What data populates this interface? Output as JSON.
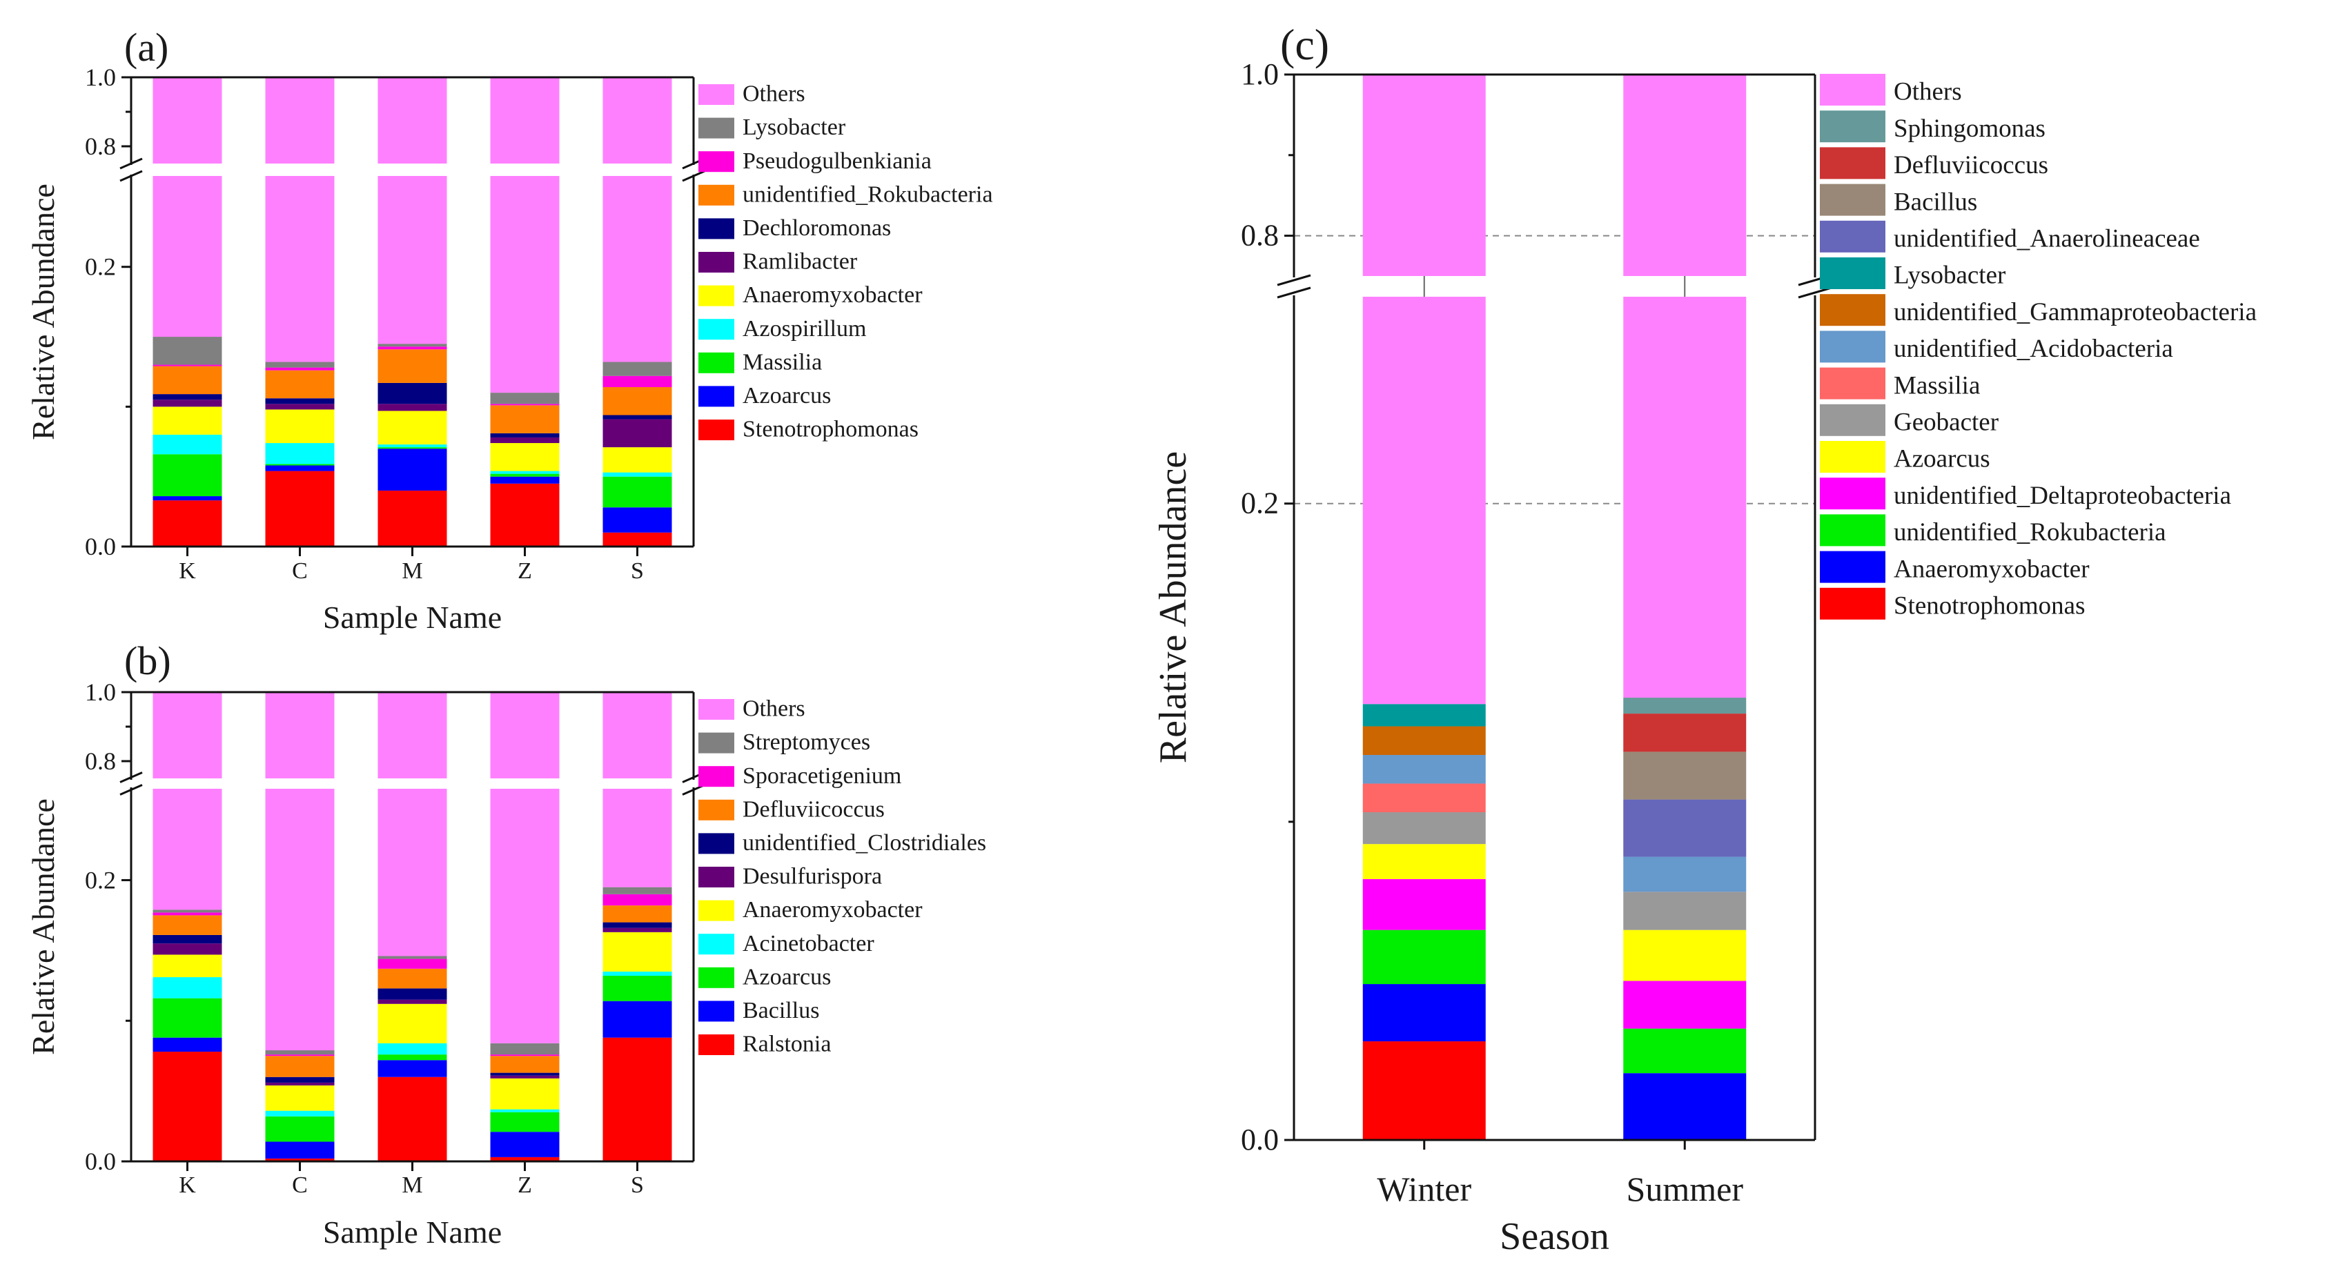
{
  "chart_data": [
    {
      "panel_label": "(a)",
      "type": "bar",
      "stacked": true,
      "axis_break": [
        0.265,
        0.75
      ],
      "xlabel": "Sample Name",
      "ylabel": "Relative Abundance",
      "categories": [
        "K",
        "C",
        "M",
        "Z",
        "S"
      ],
      "yticks": [
        "0.0",
        "0.2",
        "0.8",
        "1.0"
      ],
      "series": [
        {
          "name": "Stenotrophomonas",
          "color": "#ff0000",
          "values": [
            0.033,
            0.054,
            0.04,
            0.045,
            0.01
          ]
        },
        {
          "name": "Azoarcus",
          "color": "#0000ff",
          "values": [
            0.003,
            0.004,
            0.03,
            0.005,
            0.018
          ]
        },
        {
          "name": "Massilia",
          "color": "#00ee00",
          "values": [
            0.03,
            0.001,
            0.001,
            0.002,
            0.022
          ]
        },
        {
          "name": "Azospirillum",
          "color": "#00ffff",
          "values": [
            0.014,
            0.015,
            0.002,
            0.002,
            0.003
          ]
        },
        {
          "name": "Anaeromyxobacter",
          "color": "#ffff00",
          "values": [
            0.02,
            0.024,
            0.024,
            0.02,
            0.018
          ]
        },
        {
          "name": "Ramlibacter",
          "color": "#660077",
          "values": [
            0.005,
            0.004,
            0.005,
            0.004,
            0.02
          ]
        },
        {
          "name": "Dechloromonas",
          "color": "#000080",
          "values": [
            0.004,
            0.004,
            0.015,
            0.003,
            0.003
          ]
        },
        {
          "name": "unidentified_Rokubacteria",
          "color": "#ff7f00",
          "values": [
            0.02,
            0.02,
            0.024,
            0.02,
            0.02
          ]
        },
        {
          "name": "Pseudogulbenkiania",
          "color": "#ff00dd",
          "values": [
            0.001,
            0.002,
            0.002,
            0.001,
            0.008
          ]
        },
        {
          "name": "Lysobacter",
          "color": "#808080",
          "values": [
            0.02,
            0.004,
            0.002,
            0.008,
            0.01
          ]
        },
        {
          "name": "Others",
          "color": "#ff80ff",
          "values": [
            0.85,
            0.868,
            0.855,
            0.89,
            0.868
          ]
        }
      ]
    },
    {
      "panel_label": "(b)",
      "type": "bar",
      "stacked": true,
      "axis_break": [
        0.265,
        0.75
      ],
      "xlabel": "Sample Name",
      "ylabel": "Relative Abundance",
      "categories": [
        "K",
        "C",
        "M",
        "Z",
        "S"
      ],
      "yticks": [
        "0.0",
        "0.2",
        "0.8",
        "1.0"
      ],
      "series": [
        {
          "name": "Ralstonia",
          "color": "#ff0000",
          "values": [
            0.078,
            0.002,
            0.06,
            0.003,
            0.088
          ]
        },
        {
          "name": "Bacillus",
          "color": "#0000ff",
          "values": [
            0.01,
            0.012,
            0.012,
            0.018,
            0.026
          ]
        },
        {
          "name": "Azoarcus",
          "color": "#00ee00",
          "values": [
            0.028,
            0.018,
            0.004,
            0.014,
            0.018
          ]
        },
        {
          "name": "Acinetobacter",
          "color": "#00ffff",
          "values": [
            0.015,
            0.004,
            0.008,
            0.002,
            0.003
          ]
        },
        {
          "name": "Anaeromyxobacter",
          "color": "#ffff00",
          "values": [
            0.016,
            0.018,
            0.028,
            0.022,
            0.028
          ]
        },
        {
          "name": "Desulfurispora",
          "color": "#660077",
          "values": [
            0.008,
            0.002,
            0.003,
            0.002,
            0.003
          ]
        },
        {
          "name": "unidentified_Clostridiales",
          "color": "#000080",
          "values": [
            0.006,
            0.004,
            0.008,
            0.002,
            0.004
          ]
        },
        {
          "name": "Defluviicoccus",
          "color": "#ff7f00",
          "values": [
            0.014,
            0.015,
            0.014,
            0.012,
            0.012
          ]
        },
        {
          "name": "Sporacetigenium",
          "color": "#ff00dd",
          "values": [
            0.002,
            0.001,
            0.007,
            0.001,
            0.008
          ]
        },
        {
          "name": "Streptomyces",
          "color": "#808080",
          "values": [
            0.002,
            0.003,
            0.002,
            0.008,
            0.005
          ]
        },
        {
          "name": "Others",
          "color": "#ff80ff",
          "values": [
            0.821,
            0.921,
            0.854,
            0.916,
            0.805
          ]
        }
      ]
    },
    {
      "panel_label": "(c)",
      "type": "bar",
      "stacked": true,
      "axis_break": [
        0.265,
        0.75
      ],
      "xlabel": "Season",
      "ylabel": "Relative Abundance",
      "categories": [
        "Winter",
        "Summer"
      ],
      "yticks": [
        "0.0",
        "0.2",
        "0.8",
        "1.0"
      ],
      "series": [
        {
          "name": "Stenotrophomonas",
          "color": "#ff0000",
          "values": [
            0.031,
            0.0
          ]
        },
        {
          "name": "Anaeromyxobacter",
          "color": "#0000ff",
          "values": [
            0.018,
            0.021
          ]
        },
        {
          "name": "unidentified_Rokubacteria",
          "color": "#00ee00",
          "values": [
            0.017,
            0.014
          ]
        },
        {
          "name": "unidentified_Deltaproteobacteria",
          "color": "#ff00ff",
          "values": [
            0.016,
            0.015
          ]
        },
        {
          "name": "Azoarcus",
          "color": "#ffff00",
          "values": [
            0.011,
            0.016
          ]
        },
        {
          "name": "Geobacter",
          "color": "#999999",
          "values": [
            0.01,
            0.012
          ]
        },
        {
          "name": "Massilia",
          "color": "#ff6666",
          "values": [
            0.009,
            0.0
          ]
        },
        {
          "name": "unidentified_Acidobacteria",
          "color": "#6699cc",
          "values": [
            0.009,
            0.011
          ]
        },
        {
          "name": "unidentified_Gammaproteobacteria",
          "color": "#cc6600",
          "values": [
            0.009,
            0.0
          ]
        },
        {
          "name": "Lysobacter",
          "color": "#009999",
          "values": [
            0.007,
            0.0
          ]
        },
        {
          "name": "unidentified_Anaerolineaceae",
          "color": "#6666bb",
          "values": [
            0.0,
            0.018
          ]
        },
        {
          "name": "Bacillus",
          "color": "#998877",
          "values": [
            0.0,
            0.015
          ]
        },
        {
          "name": "Defluviicoccus",
          "color": "#cc3333",
          "values": [
            0.0,
            0.012
          ]
        },
        {
          "name": "Sphingomonas",
          "color": "#669999",
          "values": [
            0.0,
            0.005
          ]
        },
        {
          "name": "Others",
          "color": "#ff80ff",
          "values": [
            0.863,
            0.861
          ]
        }
      ]
    }
  ]
}
